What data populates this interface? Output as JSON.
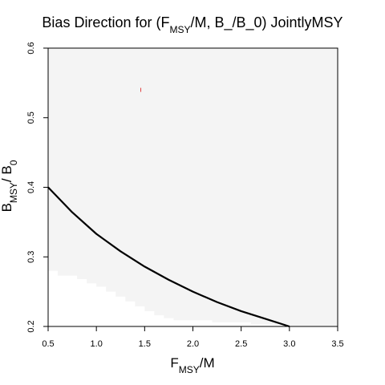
{
  "chart_data": {
    "type": "line",
    "title": "Bias Direction for (FMSY/M, B_/B_0) JointlyMSY",
    "title_parts": {
      "prefix": "Bias Direction for (F",
      "sub": "MSY",
      "suffix": "/M, B_/B_0) JointlyMSY"
    },
    "xlabel": "FMSY/M",
    "xlabel_parts": {
      "main": "F",
      "sub": "MSY",
      "rest": "/M"
    },
    "ylabel": "BMSY/B0",
    "ylabel_parts": {
      "main": "B",
      "sub": "MSY",
      "rest": "/ B",
      "sub2": "0"
    },
    "xlim": [
      0.5,
      3.5
    ],
    "ylim": [
      0.2,
      0.6
    ],
    "xticks": [
      "0.5",
      "1.0",
      "1.5",
      "2.0",
      "2.5",
      "3.0",
      "3.5"
    ],
    "yticks": [
      "0.2",
      "0.3",
      "0.4",
      "0.5",
      "0.6"
    ],
    "grid": false,
    "colors": {
      "region_fill": "#f4f4f4",
      "curve": "#000000",
      "marker": "#e04040"
    },
    "feasible_region": {
      "lower_boundary": [
        {
          "x": 0.5,
          "y": 0.28
        },
        {
          "x": 0.6,
          "y": 0.273
        },
        {
          "x": 0.8,
          "y": 0.268
        },
        {
          "x": 0.9,
          "y": 0.262
        },
        {
          "x": 1.0,
          "y": 0.257
        },
        {
          "x": 1.1,
          "y": 0.25
        },
        {
          "x": 1.2,
          "y": 0.243
        },
        {
          "x": 1.3,
          "y": 0.236
        },
        {
          "x": 1.4,
          "y": 0.229
        },
        {
          "x": 1.5,
          "y": 0.222
        },
        {
          "x": 1.6,
          "y": 0.216
        },
        {
          "x": 1.7,
          "y": 0.212
        },
        {
          "x": 1.8,
          "y": 0.209
        },
        {
          "x": 2.2,
          "y": 0.206
        },
        {
          "x": 2.6,
          "y": 0.203
        },
        {
          "x": 3.0,
          "y": 0.201
        },
        {
          "x": 3.5,
          "y": 0.2
        }
      ]
    },
    "series": [
      {
        "values": [
          {
            "x": 0.5,
            "y": 0.4
          },
          {
            "x": 0.75,
            "y": 0.364
          },
          {
            "x": 1.0,
            "y": 0.333
          },
          {
            "x": 1.25,
            "y": 0.308
          },
          {
            "x": 1.5,
            "y": 0.286
          },
          {
            "x": 1.75,
            "y": 0.267
          },
          {
            "x": 2.0,
            "y": 0.25
          },
          {
            "x": 2.25,
            "y": 0.235
          },
          {
            "x": 2.5,
            "y": 0.222
          },
          {
            "x": 2.75,
            "y": 0.211
          },
          {
            "x": 3.0,
            "y": 0.2
          }
        ]
      }
    ],
    "markers": [
      {
        "x": 1.46,
        "y": 0.54
      }
    ]
  }
}
